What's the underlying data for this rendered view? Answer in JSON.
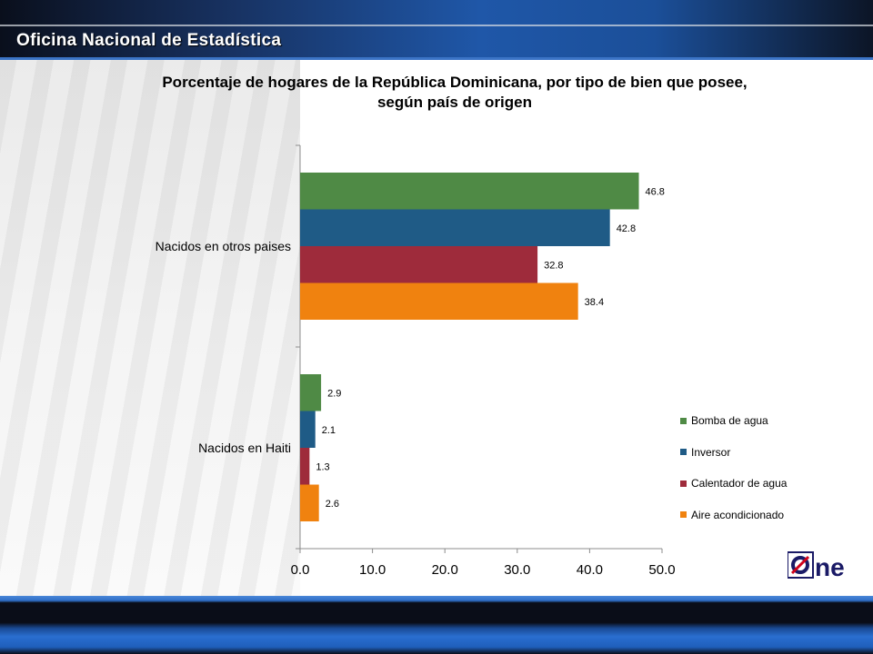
{
  "header": {
    "org_title": "Oficina Nacional de Estadística"
  },
  "logo": {
    "text": "One",
    "colors": {
      "box": "#ffffff",
      "letters": "#1a1a66",
      "stripe": "#d0021b"
    }
  },
  "chart_data": {
    "type": "bar",
    "orientation": "horizontal",
    "title": "Porcentaje de hogares de la República Dominicana, por tipo de bien que posee, según país de origen",
    "title_lines": [
      "Porcentaje de hogares de la República Dominicana, por tipo de bien que posee,",
      "según país de origen"
    ],
    "categories": [
      "Nacidos en otros paises",
      "Nacidos en Haiti"
    ],
    "series": [
      {
        "name": "Bomba de agua",
        "color": "#4f8a45",
        "values": [
          46.8,
          2.9
        ]
      },
      {
        "name": "Inversor",
        "color": "#1f5b86",
        "values": [
          42.8,
          2.1
        ]
      },
      {
        "name": "Calentador de agua",
        "color": "#9e2b3b",
        "values": [
          32.8,
          1.3
        ]
      },
      {
        "name": "Aire acondicionado",
        "color": "#f0820f",
        "values": [
          38.4,
          2.6
        ]
      }
    ],
    "xlim": [
      0,
      50
    ],
    "xticks": [
      "0.0",
      "10.0",
      "20.0",
      "30.0",
      "40.0",
      "50.0"
    ],
    "xlabel": "",
    "ylabel": "",
    "grid": false,
    "legend_position": "right"
  }
}
